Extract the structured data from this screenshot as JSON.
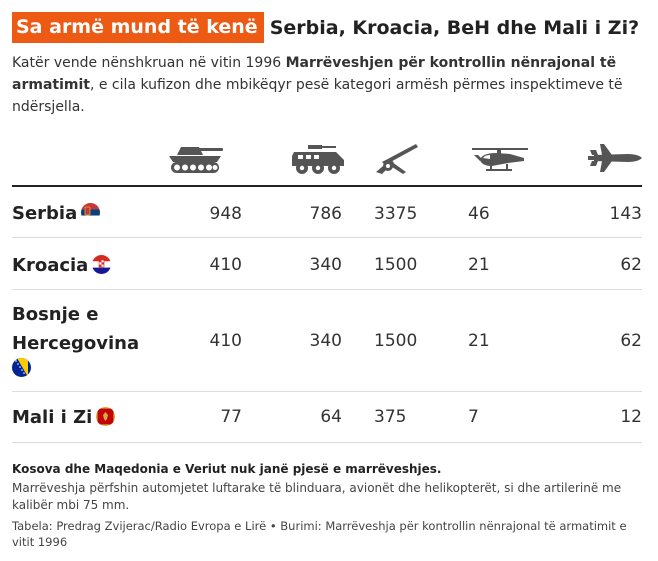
{
  "title": {
    "highlight": "Sa armë mund të kenë",
    "rest": "Serbia, Kroacia, BeH dhe Mali i Zi?"
  },
  "subtitle": {
    "part1": "Katër vende nënshkruan në vitin 1996 ",
    "bold": "Marrëveshjen për kontrollin nënrajonal të armatimit",
    "part2": ", e cila kufizon dhe mbikëqyr pesë kategori armësh përmes inspektimeve të ndërsjella."
  },
  "icons": [
    "tank-icon",
    "armored-vehicle-icon",
    "artillery-icon",
    "helicopter-icon",
    "fighter-jet-icon"
  ],
  "chart_data": {
    "type": "table",
    "columns": [
      "tank-icon",
      "armored-vehicle-icon",
      "artillery-icon",
      "helicopter-icon",
      "fighter-jet-icon"
    ],
    "rows": [
      {
        "label": "Serbia",
        "flag": "serbia",
        "values": [
          948,
          786,
          3375,
          46,
          143
        ]
      },
      {
        "label": "Kroacia",
        "flag": "croatia",
        "values": [
          410,
          340,
          1500,
          21,
          62
        ]
      },
      {
        "label": "Bosnje e Hercegovina",
        "label_lines": [
          "Bosnje e",
          "Hercegovina"
        ],
        "flag": "bosnia",
        "values": [
          410,
          340,
          1500,
          21,
          62
        ]
      },
      {
        "label": "Mali i Zi",
        "flag": "montenegro",
        "values": [
          77,
          64,
          375,
          7,
          12
        ]
      }
    ]
  },
  "notes": {
    "bold": "Kosova dhe Maqedonia e Veriut nuk janë pjesë e marrëveshjes.",
    "text": "Marrëveshja përfshin automjetet luftarake të blinduara, avionët dhe helikopterët, si dhe artilerinë me kalibër mbi 75 mm.",
    "source": "Tabela: Predrag Zvijerac/Radio Evropa e Lirë • Burimi: Marrëveshja për kontrollin nënrajonal të armatimit e vitit 1996"
  },
  "colors": {
    "accent": "#ec5a14",
    "icon": "#555555",
    "text": "#222222",
    "rule": "#dddddd"
  }
}
